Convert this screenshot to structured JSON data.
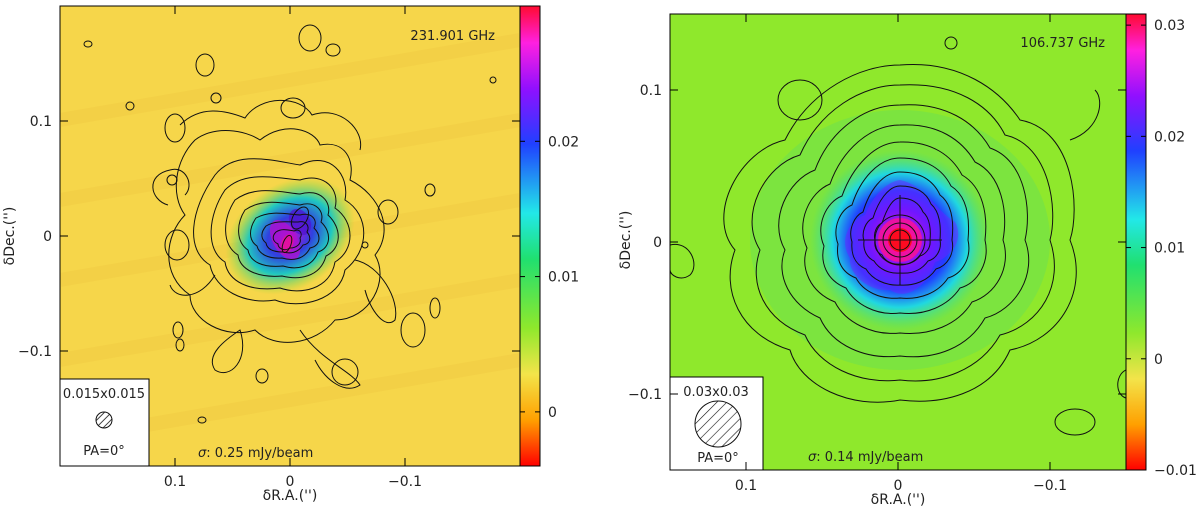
{
  "chart_data": [
    {
      "type": "heatmap",
      "frequency": "231.901 GHz",
      "sigma_symbol": "σ",
      "sigma_value": ": 0.25 mJy/beam",
      "beam_size": "0.015x0.015",
      "beam_pa": "PA=0°",
      "xlabel": "δR.A.('')",
      "ylabel": "δDec.('')",
      "xlim": [
        0.2,
        -0.2
      ],
      "ylim": [
        -0.2,
        0.2
      ],
      "x_ticks": [
        0.1,
        0,
        -0.1
      ],
      "x_tick_labels": [
        "0.1",
        "0",
        "−0.1"
      ],
      "y_ticks": [
        -0.1,
        0,
        0.1
      ],
      "y_tick_labels": [
        "−0.1",
        "0",
        "0.1"
      ],
      "colorbar_ticks": [
        0,
        0.01,
        0.02
      ],
      "colorbar_tick_labels": [
        "0",
        "0.01",
        "0.02"
      ],
      "colorbar_range": [
        -0.004,
        0.03
      ],
      "background_color": "#f6d64a",
      "peak_position": [
        0.0,
        -0.005
      ],
      "structure": "X-shaped central emission with two peaks along NW-SE, extended filamentary contours"
    },
    {
      "type": "heatmap",
      "frequency": "106.737 GHz",
      "sigma_symbol": "σ",
      "sigma_value": ": 0.14 mJy/beam",
      "beam_size": "0.03x0.03",
      "beam_pa": "PA=0°",
      "xlabel": "δR.A.('')",
      "ylabel": "δDec.('')",
      "xlim": [
        0.15,
        -0.15
      ],
      "ylim": [
        -0.15,
        0.15
      ],
      "x_ticks": [
        0.1,
        0,
        -0.1
      ],
      "x_tick_labels": [
        "0.1",
        "0",
        "−0.1"
      ],
      "y_ticks": [
        -0.1,
        0,
        0.1
      ],
      "y_tick_labels": [
        "−0.1",
        "0",
        "0.1"
      ],
      "colorbar_ticks": [
        -0.01,
        0,
        0.01,
        0.02,
        0.03
      ],
      "colorbar_tick_labels": [
        "−0.01",
        "0",
        "0.01",
        "0.02",
        "0.03"
      ],
      "colorbar_range": [
        -0.01,
        0.031
      ],
      "background_color": "#8fe82c",
      "peak_position": [
        0.0,
        0.0
      ],
      "structure": "Compact central source with four-lobed (diamond) extended contours"
    }
  ]
}
